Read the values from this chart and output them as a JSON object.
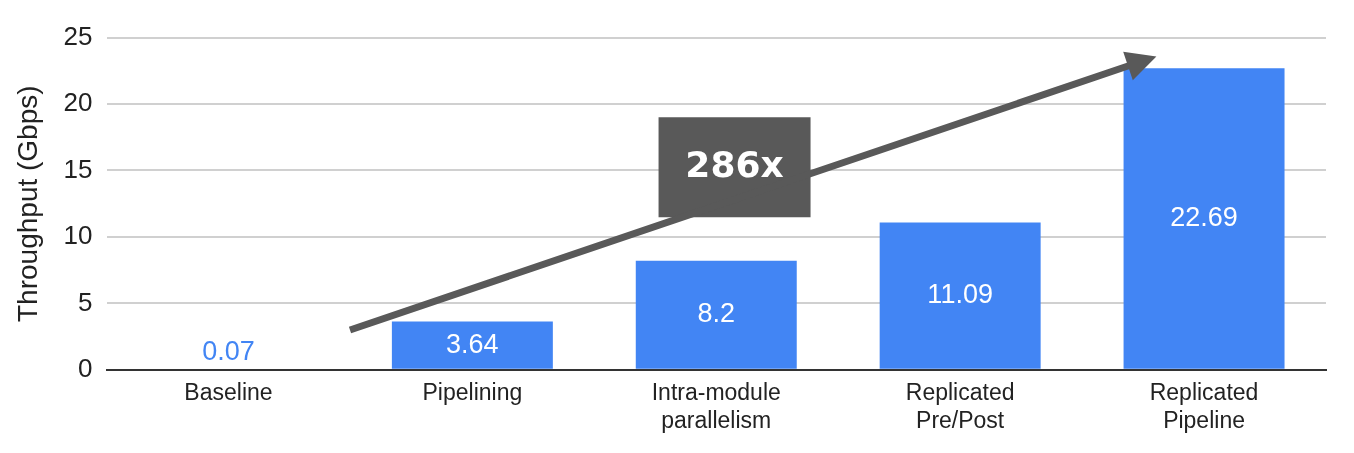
{
  "chart_data": {
    "type": "bar",
    "ylabel": "Throughput (Gbps)",
    "categories": [
      "Baseline",
      "Pipelining",
      "Intra-module parallelism",
      "Replicated Pre/Post",
      "Replicated Pipeline"
    ],
    "values": [
      0.07,
      3.64,
      8.2,
      11.09,
      22.69
    ],
    "color": "#4285f4",
    "ylim": [
      0,
      25
    ],
    "yticks": [
      0,
      5,
      10,
      15,
      20,
      25
    ],
    "grid": "y",
    "legend": false,
    "data_labels": true,
    "annotations": [
      "286x"
    ]
  }
}
